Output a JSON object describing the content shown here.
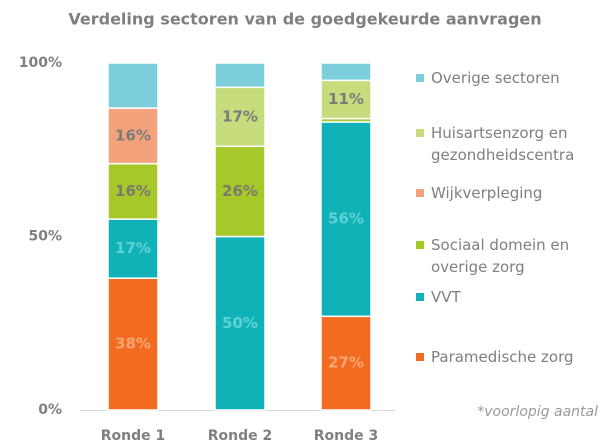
{
  "chart_data": {
    "type": "stacked_bar",
    "title": "Verdeling sectoren van de goedgekeurde aanvragen",
    "note": "*voorlopig aantal",
    "categories": [
      "Ronde 1",
      "Ronde 2",
      "Ronde 3"
    ],
    "ylim": [
      0,
      100
    ],
    "yticks": [
      {
        "value": 0,
        "label": "0%"
      },
      {
        "value": 50,
        "label": "50%"
      },
      {
        "value": 100,
        "label": "100%"
      }
    ],
    "grid": false,
    "legend": "right",
    "series": [
      {
        "name": "Paramedische zorg",
        "color": "#f26b21",
        "label_color": "#f9a675",
        "values": [
          38,
          0,
          27
        ],
        "value_labels": [
          "38%",
          null,
          "27%"
        ]
      },
      {
        "name": "VVT",
        "color": "#10b2b8",
        "label_color": "#5fd2d6",
        "values": [
          17,
          50,
          56
        ],
        "value_labels": [
          "17%",
          "50%",
          "56%"
        ]
      },
      {
        "name": "Sociaal domein en overige zorg",
        "color": "#a6c82b",
        "label_color": "#7a7a6a",
        "values": [
          16,
          26,
          1
        ],
        "value_labels": [
          "16%",
          "26%",
          null
        ]
      },
      {
        "name": "Wijkverpleging",
        "color": "#f4a27c",
        "label_color": "#7b7b7b",
        "values": [
          16,
          0,
          0
        ],
        "value_labels": [
          "16%",
          null,
          null
        ]
      },
      {
        "name": "Huisartsenzorg en gezondheidscentra",
        "color": "#c6dc7d",
        "label_color": "#7b7b7b",
        "values": [
          0,
          17,
          11
        ],
        "value_labels": [
          null,
          "17%",
          "11%"
        ]
      },
      {
        "name": "Overige sectoren",
        "color": "#7ccfda",
        "label_color": "#7b7b7b",
        "values": [
          13,
          7,
          5
        ],
        "value_labels": [
          null,
          null,
          null
        ]
      }
    ]
  }
}
